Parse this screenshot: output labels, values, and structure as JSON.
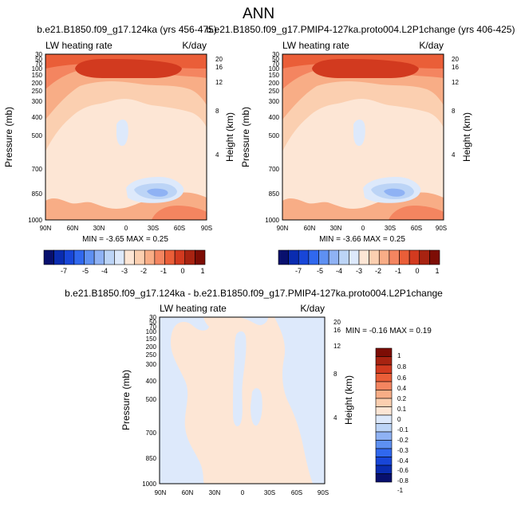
{
  "page_title": "ANN",
  "colors": {
    "blues": [
      "#08106e",
      "#0a2cb0",
      "#1846d8",
      "#3068ee",
      "#5e90f2",
      "#8fb2f4",
      "#bcd4f6",
      "#dde9fb"
    ],
    "reds": [
      "#fde6d5",
      "#fbcfb0",
      "#f8ad86",
      "#f48560",
      "#ea5e38",
      "#d23a1f",
      "#a82311",
      "#7d0d05"
    ]
  },
  "chart_data": [
    {
      "id": "top-left",
      "type": "contour",
      "title": "b.e21.B1850.f09_g17.124ka (yrs 456-475)",
      "left_label": "LW heating rate",
      "right_label": "K/day",
      "xlabel": "",
      "ylabel": "Pressure (mb)",
      "ylabel_right": "Height (km)",
      "x_ticks": [
        "90N",
        "60N",
        "30N",
        "0",
        "30S",
        "60S",
        "90S"
      ],
      "y_ticks": [
        "30",
        "50",
        "70",
        "100",
        "150",
        "200",
        "250",
        "300",
        "400",
        "500",
        "700",
        "850",
        "1000"
      ],
      "y_ticks_right": [
        "20",
        "16",
        "12",
        "8",
        "4"
      ],
      "stats": "MIN = -3.65   MAX =  0.25",
      "min": -3.65,
      "max": 0.25
    },
    {
      "id": "top-right",
      "type": "contour",
      "title": "b.e21.B1850.f09_g17.PMIP4-127ka.proto004.L2P1change (yrs 406-425)",
      "left_label": "LW heating rate",
      "right_label": "K/day",
      "xlabel": "",
      "ylabel": "Pressure (mb)",
      "ylabel_right": "Height (km)",
      "x_ticks": [
        "90N",
        "60N",
        "30N",
        "0",
        "30S",
        "60S",
        "90S"
      ],
      "y_ticks": [
        "30",
        "50",
        "70",
        "100",
        "150",
        "200",
        "250",
        "300",
        "400",
        "500",
        "700",
        "850",
        "1000"
      ],
      "y_ticks_right": [
        "20",
        "16",
        "12",
        "8",
        "4"
      ],
      "stats": "MIN = -3.66   MAX =  0.25",
      "min": -3.66,
      "max": 0.25
    },
    {
      "id": "bottom",
      "type": "contour",
      "title": "b.e21.B1850.f09_g17.124ka - b.e21.B1850.f09_g17.PMIP4-127ka.proto004.L2P1change",
      "left_label": "LW heating rate",
      "right_label": "K/day",
      "xlabel": "",
      "ylabel": "Pressure (mb)",
      "ylabel_right": "Height (km)",
      "x_ticks": [
        "90N",
        "60N",
        "30N",
        "0",
        "30S",
        "60S",
        "90S"
      ],
      "y_ticks": [
        "30",
        "50",
        "70",
        "100",
        "150",
        "200",
        "250",
        "300",
        "400",
        "500",
        "700",
        "850",
        "1000"
      ],
      "y_ticks_right": [
        "20",
        "16",
        "12",
        "8",
        "4"
      ],
      "stats": "MIN = -0.16   MAX =  0.19",
      "min": -0.16,
      "max": 0.19
    }
  ],
  "colorbar_top": {
    "labels": [
      "-7",
      "-5",
      "-4",
      "-3",
      "-2",
      "-1",
      "0",
      "1"
    ]
  },
  "colorbar_diff": {
    "labels": [
      "1",
      "0.8",
      "0.6",
      "0.4",
      "0.2",
      "0.1",
      "0",
      "-0.1",
      "-0.2",
      "-0.3",
      "-0.4",
      "-0.6",
      "-0.8",
      "-1"
    ]
  }
}
